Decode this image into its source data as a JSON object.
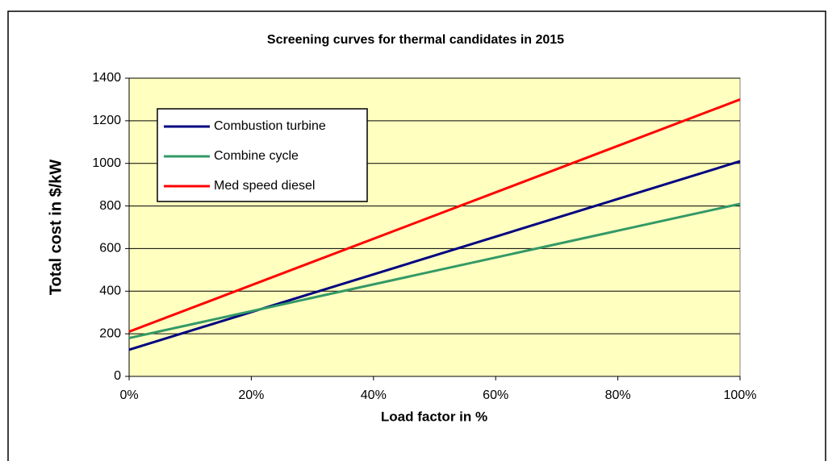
{
  "chart_data": {
    "type": "line",
    "title": "Screening curves for thermal candidates in 2015",
    "x_label": "Load factor in %",
    "y_label": "Total cost in $/kW",
    "x": [
      0,
      100
    ],
    "series": [
      {
        "name": "Combustion turbine",
        "color": "#000080",
        "values": [
          125,
          1010
        ]
      },
      {
        "name": "Combine cycle",
        "color": "#339966",
        "values": [
          180,
          810
        ]
      },
      {
        "name": "Med speed diesel",
        "color": "#ff0000",
        "values": [
          210,
          1300
        ]
      }
    ],
    "xlim": [
      0,
      100
    ],
    "xticks": [
      {
        "value": 0,
        "label": "0%"
      },
      {
        "value": 20,
        "label": "20%"
      },
      {
        "value": 40,
        "label": "40%"
      },
      {
        "value": 60,
        "label": "60%"
      },
      {
        "value": 80,
        "label": "80%"
      },
      {
        "value": 100,
        "label": "100%"
      }
    ],
    "ylim": [
      0,
      1400
    ],
    "yticks": [
      0,
      200,
      400,
      600,
      800,
      1000,
      1200,
      1400
    ],
    "grid": true,
    "legend": "upper left",
    "plot_background": "#ffffc0"
  }
}
